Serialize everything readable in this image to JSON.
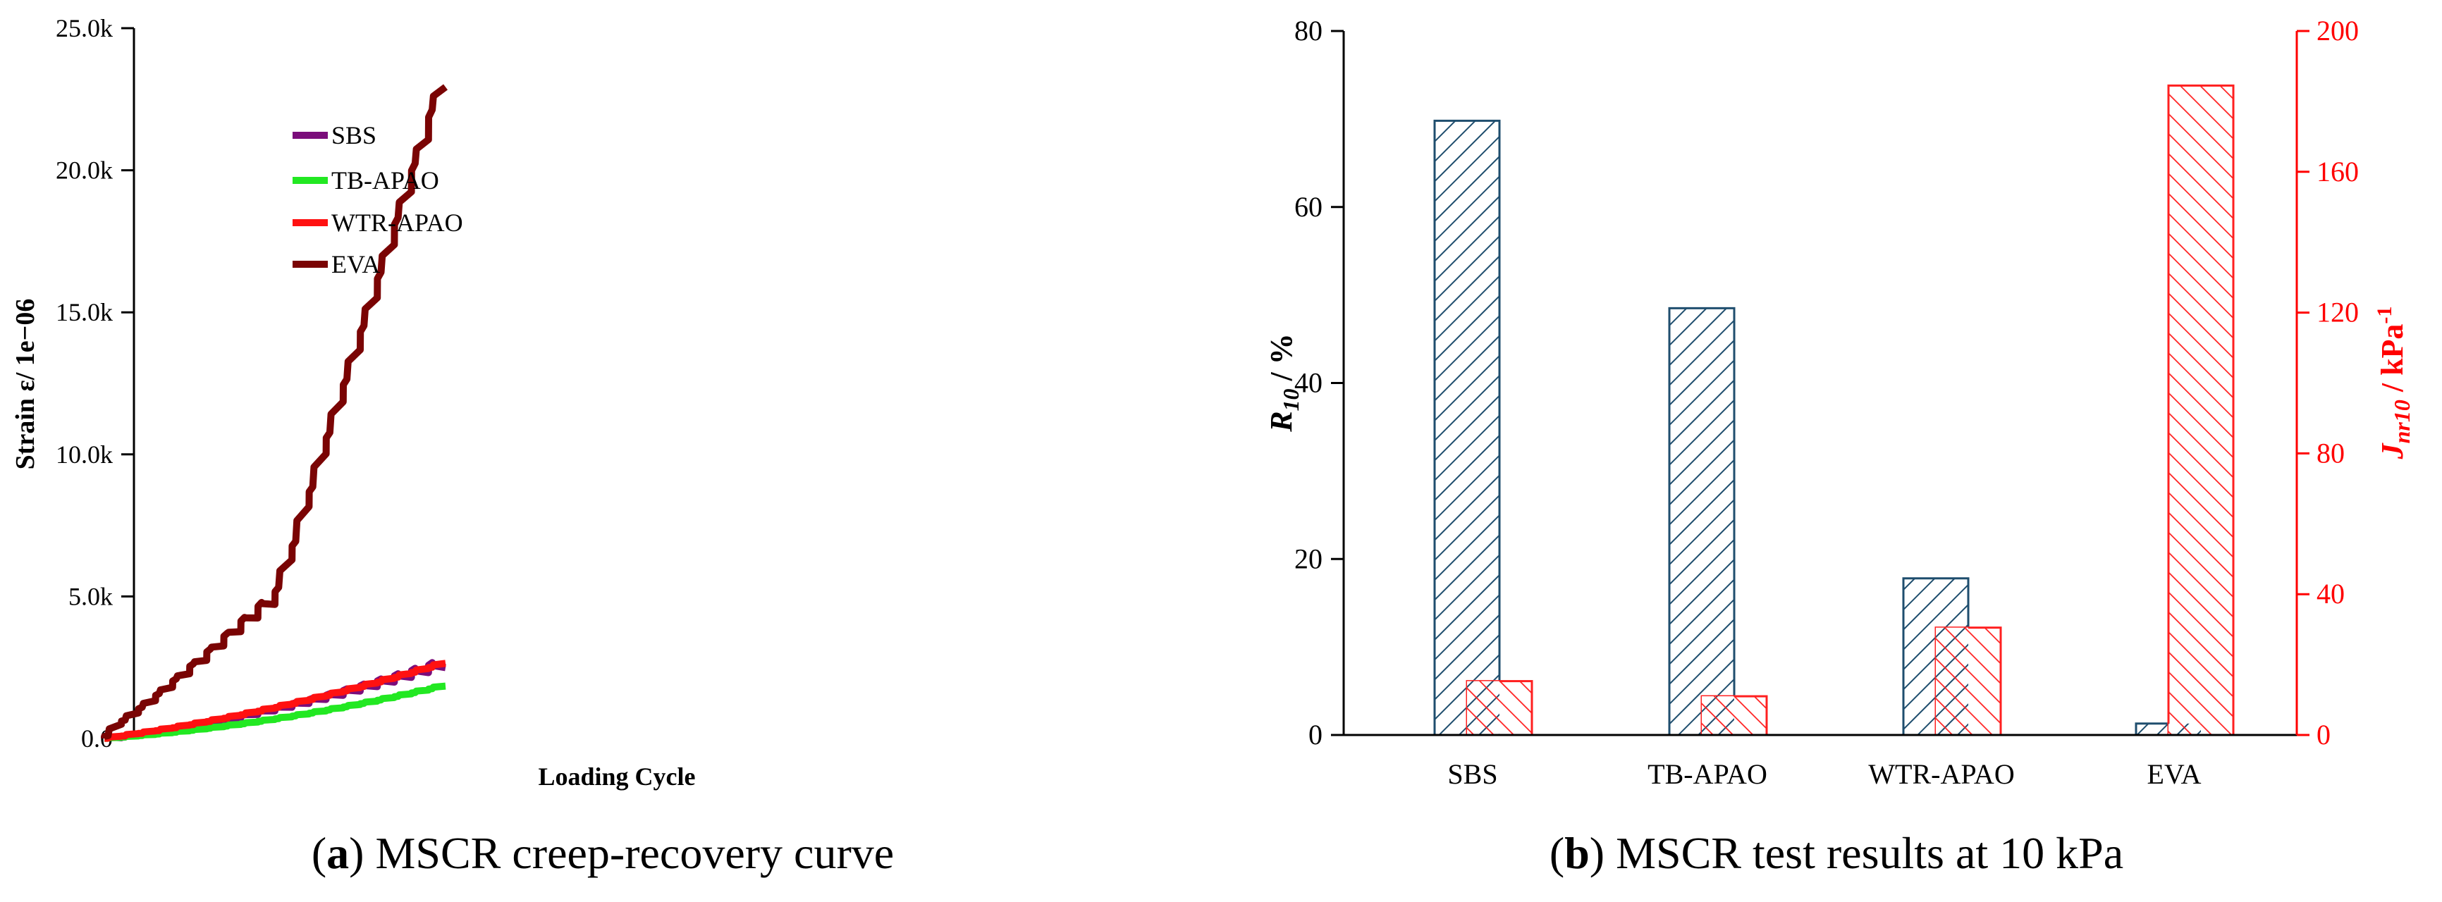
{
  "chart_data": [
    {
      "type": "line",
      "panel_letter": "a",
      "caption": "MSCR creep-recovery curve",
      "xlabel": "Loading Cycle",
      "ylabel": "Strain ε/ 1e−06",
      "ylim": [
        0,
        25000
      ],
      "yticks": [
        "0.0",
        "5.0k",
        "10.0k",
        "15.0k",
        "20.0k",
        "25.0k"
      ],
      "ytick_values": [
        0,
        5000,
        10000,
        15000,
        20000,
        25000
      ],
      "xlim": [
        0,
        20
      ],
      "legend_position": "top-left",
      "series": [
        {
          "name": "SBS",
          "color": "#7b0d7b",
          "cycles": [
            [
              25,
              100
            ],
            [
              110,
              25
            ],
            [
              200,
              35
            ],
            [
              295,
              45
            ],
            [
              395,
              55
            ],
            [
              500,
              70
            ],
            [
              610,
              80
            ],
            [
              725,
              95
            ],
            [
              845,
              110
            ],
            [
              970,
              125
            ],
            [
              1100,
              140
            ],
            [
              1235,
              160
            ],
            [
              1375,
              180
            ],
            [
              1520,
              200
            ],
            [
              1670,
              225
            ],
            [
              1825,
              245
            ],
            [
              1985,
              270
            ],
            [
              2150,
              295
            ],
            [
              2320,
              320
            ],
            [
              2495,
              350
            ]
          ]
        },
        {
          "name": "TB-APAO",
          "color": "#22e822",
          "cycles": [
            [
              40,
              10
            ],
            [
              90,
              12
            ],
            [
              145,
              14
            ],
            [
              205,
              16
            ],
            [
              270,
              18
            ],
            [
              340,
              20
            ],
            [
              415,
              22
            ],
            [
              495,
              24
            ],
            [
              580,
              26
            ],
            [
              670,
              28
            ],
            [
              765,
              30
            ],
            [
              865,
              32
            ],
            [
              970,
              34
            ],
            [
              1080,
              36
            ],
            [
              1195,
              38
            ],
            [
              1315,
              40
            ],
            [
              1440,
              42
            ],
            [
              1570,
              44
            ],
            [
              1705,
              46
            ],
            [
              1845,
              48
            ]
          ]
        },
        {
          "name": "WTR-APAO",
          "color": "#ff1111",
          "cycles": [
            [
              80,
              10
            ],
            [
              170,
              10
            ],
            [
              265,
              12
            ],
            [
              365,
              14
            ],
            [
              470,
              16
            ],
            [
              580,
              18
            ],
            [
              695,
              20
            ],
            [
              815,
              22
            ],
            [
              940,
              24
            ],
            [
              1070,
              26
            ],
            [
              1205,
              28
            ],
            [
              1345,
              30
            ],
            [
              1490,
              32
            ],
            [
              1640,
              34
            ],
            [
              1795,
              36
            ],
            [
              1955,
              38
            ],
            [
              2120,
              40
            ],
            [
              2290,
              42
            ],
            [
              2465,
              44
            ],
            [
              2645,
              46
            ]
          ]
        },
        {
          "name": "EVA",
          "color": "#7a0404",
          "cycles": [
            [
              500,
              100
            ],
            [
              900,
              150
            ],
            [
              1330,
              200
            ],
            [
              1800,
              250
            ],
            [
              2280,
              300
            ],
            [
              2750,
              350
            ],
            [
              3260,
              400
            ],
            [
              3760,
              450
            ],
            [
              4240,
              500
            ],
            [
              4720,
              550
            ],
            [
              6290,
              600
            ],
            [
              8160,
              650
            ],
            [
              10020,
              700
            ],
            [
              11850,
              750
            ],
            [
              13680,
              800
            ],
            [
              15510,
              850
            ],
            [
              17380,
              900
            ],
            [
              19240,
              950
            ],
            [
              21080,
              1000
            ],
            [
              22930,
              1050
            ]
          ]
        }
      ]
    },
    {
      "type": "bar",
      "panel_letter": "b",
      "caption": "MSCR test results at 10 kPa",
      "categories": [
        "SBS",
        "TB-APAO",
        "WTR-APAO",
        "EVA"
      ],
      "ylim": [
        0,
        80
      ],
      "yticks": [
        "0",
        "20",
        "40",
        "60",
        "80"
      ],
      "ytick_values": [
        0,
        20,
        40,
        60,
        80
      ],
      "y2lim": [
        0,
        200
      ],
      "y2ticks": [
        "0",
        "40",
        "80",
        "120",
        "160",
        "200"
      ],
      "y2tick_values": [
        0,
        40,
        80,
        120,
        160,
        200
      ],
      "ylabel_main": "R",
      "ylabel_sub": "10",
      "ylabel_unit": " / %",
      "y2label_main": "J",
      "y2label_sub": "nr10",
      "y2label_unit": " / kPa",
      "y2label_sup": "-1",
      "axis2_color": "#ff0000",
      "series": [
        {
          "name": "R10",
          "axis": "left",
          "color": "#1f4e6e",
          "values": [
            69.8,
            48.5,
            17.8,
            1.3
          ]
        },
        {
          "name": "Jnr10",
          "axis": "right",
          "color": "#ff2020",
          "values": [
            15.3,
            11.0,
            30.5,
            184.5
          ]
        }
      ]
    }
  ]
}
